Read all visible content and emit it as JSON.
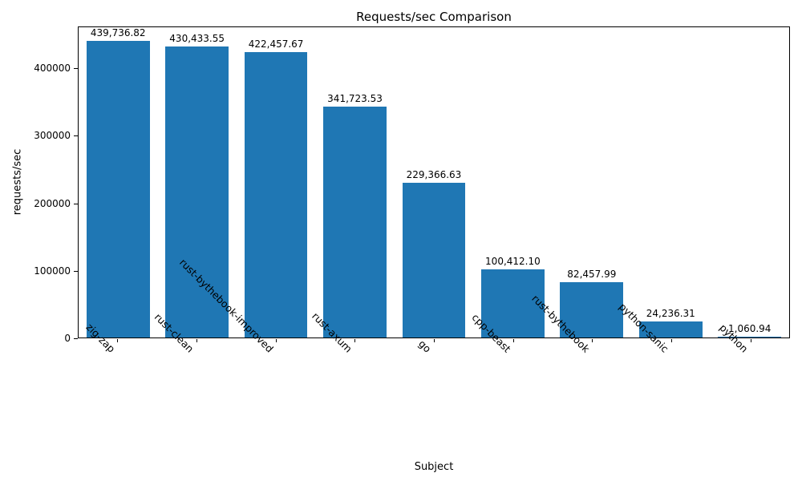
{
  "chart_data": {
    "type": "bar",
    "title": "Requests/sec Comparison",
    "xlabel": "Subject",
    "ylabel": "requests/sec",
    "categories": [
      "zig-zap",
      "rust-clean",
      "rust-bythebook-improved",
      "rust-axum",
      "go",
      "cpp-beast",
      "rust-bythebook",
      "python-sanic",
      "python"
    ],
    "values": [
      439736.82,
      430433.55,
      422457.67,
      341723.53,
      229366.63,
      100412.1,
      82457.99,
      24236.31,
      1060.94
    ],
    "value_labels": [
      "439,736.82",
      "430,433.55",
      "422,457.67",
      "341,723.53",
      "229,366.63",
      "100,412.10",
      "82,457.99",
      "24,236.31",
      "1,060.94"
    ],
    "ylim": [
      0,
      461724
    ],
    "yticks": [
      0,
      100000,
      200000,
      300000,
      400000
    ],
    "bar_color": "#1f77b4",
    "grid": false,
    "legend_position": "none"
  }
}
